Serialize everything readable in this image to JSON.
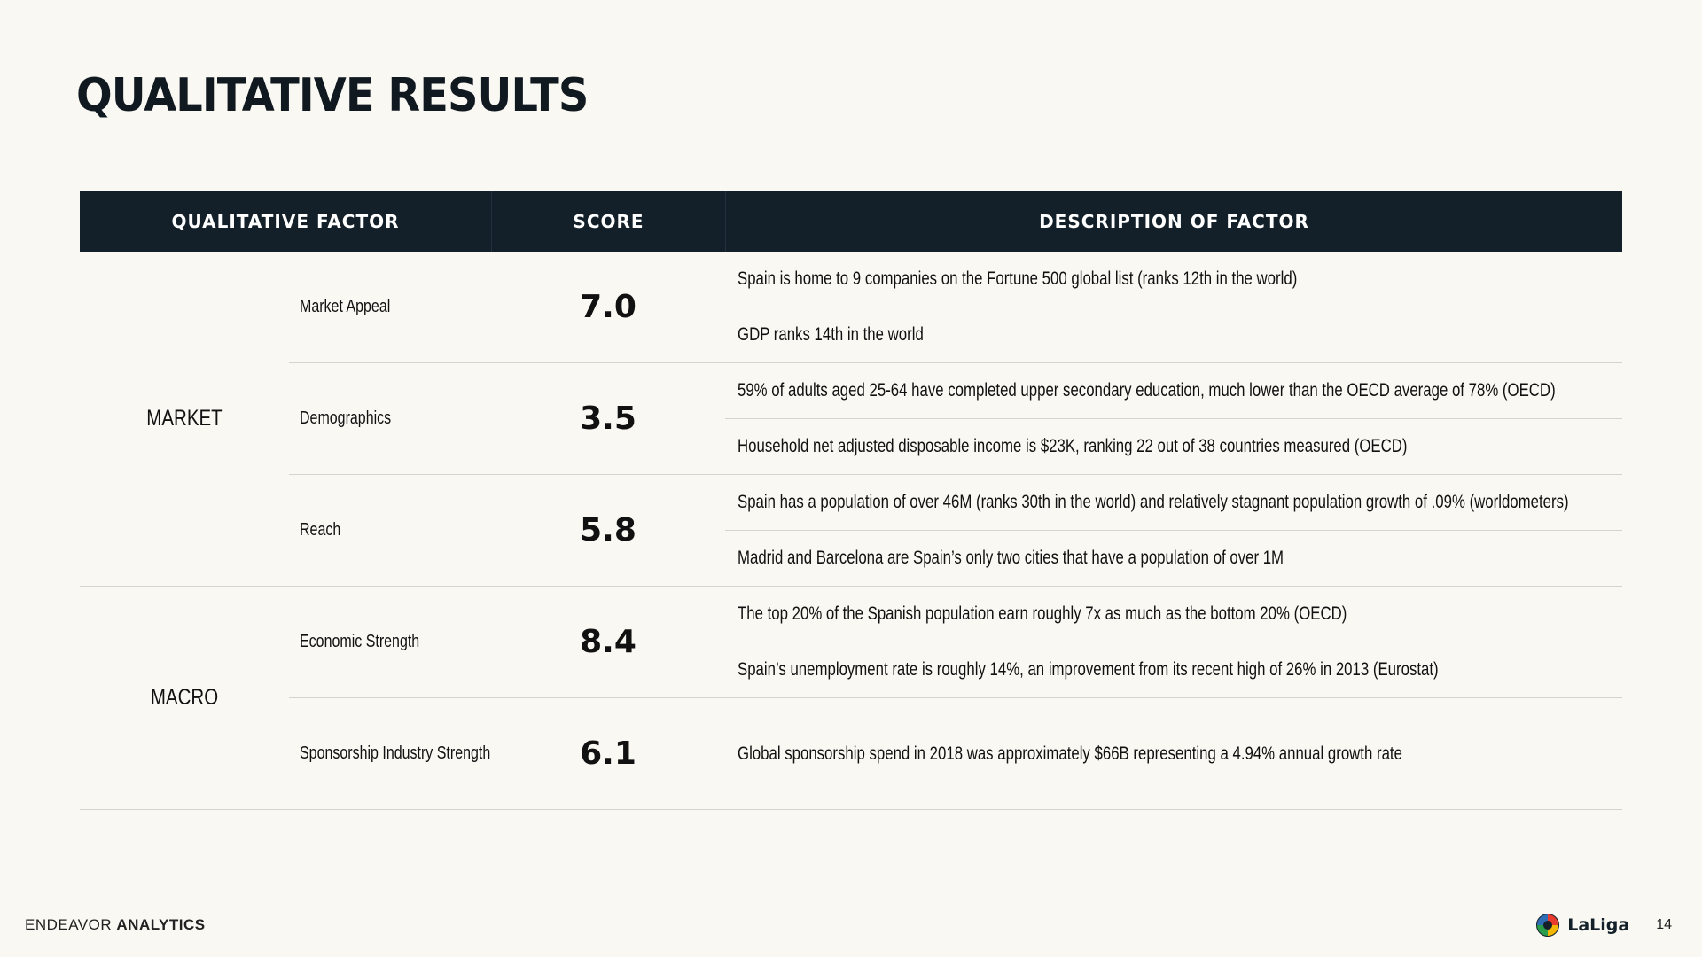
{
  "title": "QUALITATIVE RESULTS",
  "table": {
    "headers": [
      "QUALITATIVE FACTOR",
      "SCORE",
      "DESCRIPTION OF FACTOR"
    ],
    "groups": [
      {
        "label": "MARKET",
        "factors": [
          {
            "name": "Market Appeal",
            "score": "7.0",
            "descriptions": [
              "Spain is home to 9 companies on the Fortune 500 global list (ranks 12th in the world)",
              "GDP ranks 14th in the world"
            ]
          },
          {
            "name": "Demographics",
            "score": "3.5",
            "descriptions": [
              "59% of adults aged 25-64 have completed upper secondary education, much lower than the OECD average of 78% (OECD)",
              "Household net adjusted disposable income is $23K, ranking 22 out of 38 countries measured (OECD)"
            ]
          },
          {
            "name": "Reach",
            "score": "5.8",
            "descriptions": [
              "Spain has a population of over 46M (ranks 30th in the world) and relatively stagnant population growth of .09% (worldometers)",
              "Madrid and Barcelona are Spain’s only two cities that have a population of over 1M"
            ]
          }
        ]
      },
      {
        "label": "MACRO",
        "factors": [
          {
            "name": "Economic Strength",
            "score": "8.4",
            "descriptions": [
              "The top 20% of the Spanish population earn roughly 7x as much as the bottom 20% (OECD)",
              "Spain’s unemployment rate is roughly 14%, an improvement from its recent high of 26% in 2013 (Eurostat)"
            ]
          },
          {
            "name": "Sponsorship Industry Strength",
            "score": "6.1",
            "descriptions": [
              "Global sponsorship spend in 2018 was approximately $66B representing a 4.94% annual growth rate"
            ]
          }
        ]
      }
    ]
  },
  "footer": {
    "brand_light": "ENDEAVOR",
    "brand_bold": "ANALYTICS",
    "logo_text": "LaLiga",
    "logo_icon": "laliga-logo-icon",
    "page_number": "14"
  }
}
